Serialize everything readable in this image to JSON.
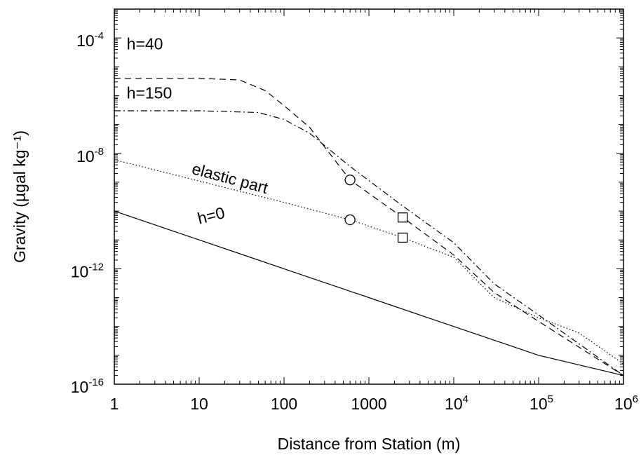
{
  "chart_data": {
    "type": "line",
    "xlabel": "Distance from Station (m)",
    "ylabel": "Gravity (µgal kg⁻¹)",
    "x_scale": "log",
    "y_scale": "log",
    "xlim": [
      1,
      1000000
    ],
    "ylim": [
      1e-16,
      0.001
    ],
    "x_ticks": [
      {
        "value": 1,
        "label": "1"
      },
      {
        "value": 10,
        "label": "10"
      },
      {
        "value": 100,
        "label": "100"
      },
      {
        "value": 1000,
        "label": "1000"
      },
      {
        "value": 10000,
        "base": "10",
        "exp": "4"
      },
      {
        "value": 100000,
        "base": "10",
        "exp": "5"
      },
      {
        "value": 1000000,
        "base": "10",
        "exp": "6"
      }
    ],
    "y_ticks": [
      {
        "value": 0.0001,
        "base": "10",
        "exp": "-4"
      },
      {
        "value": 1e-08,
        "base": "10",
        "exp": "-8"
      },
      {
        "value": 1e-12,
        "base": "10",
        "exp": "-12"
      },
      {
        "value": 1e-16,
        "base": "10",
        "exp": "-16"
      }
    ],
    "grid": false,
    "legend": "none",
    "series": [
      {
        "name": "h=0",
        "style": "solid",
        "x": [
          1,
          10,
          100,
          1000,
          10000,
          100000,
          1000000
        ],
        "y": [
          1e-10,
          1e-11,
          1e-12,
          1e-13,
          1e-14,
          1e-15,
          2e-16
        ]
      },
      {
        "name": "elastic part",
        "style": "dotted",
        "x": [
          1,
          10,
          100,
          600,
          2500,
          10000,
          30000,
          100000,
          300000,
          1000000
        ],
        "y": [
          6e-09,
          1.1e-09,
          2e-10,
          5e-11,
          1.2e-11,
          2.5e-12,
          1e-13,
          2e-14,
          6e-15,
          5e-16
        ]
      },
      {
        "name": "h=40",
        "style": "dashed",
        "x": [
          1,
          10,
          30,
          60,
          100,
          200,
          600,
          2500,
          10000,
          30000,
          100000,
          1000000
        ],
        "y": [
          4e-06,
          4e-06,
          3.5e-06,
          1.5e-06,
          4.5e-07,
          8e-08,
          1.2e-09,
          6e-11,
          3e-12,
          1.5e-13,
          1.5e-14,
          2e-16
        ]
      },
      {
        "name": "h=150",
        "style": "dash-dot",
        "x": [
          1,
          10,
          50,
          100,
          200,
          600,
          2500,
          10000,
          30000,
          100000,
          1000000
        ],
        "y": [
          3e-07,
          3e-07,
          2.6e-07,
          1.5e-07,
          5e-08,
          3.5e-09,
          1.5e-10,
          8e-12,
          3e-13,
          2.5e-14,
          2e-16
        ]
      }
    ],
    "markers": [
      {
        "shape": "circle",
        "x": 600,
        "y": 1.2e-09
      },
      {
        "shape": "circle",
        "x": 600,
        "y": 5e-11
      },
      {
        "shape": "square",
        "x": 2500,
        "y": 6e-11
      },
      {
        "shape": "square",
        "x": 2500,
        "y": 1.2e-11
      }
    ],
    "annotations": [
      {
        "text": "h=40",
        "x": 1.4,
        "y": 4e-05,
        "rotate": 0
      },
      {
        "text": "h=150",
        "x": 1.4,
        "y": 8e-07,
        "rotate": 0
      },
      {
        "text": "elastic part",
        "x": 8,
        "y": 2e-09,
        "rotate": 15
      },
      {
        "text": "h=0",
        "x": 10,
        "y": 3.5e-11,
        "rotate": -14
      }
    ],
    "colors": {
      "line": "#000000",
      "background": "#ffffff"
    }
  }
}
